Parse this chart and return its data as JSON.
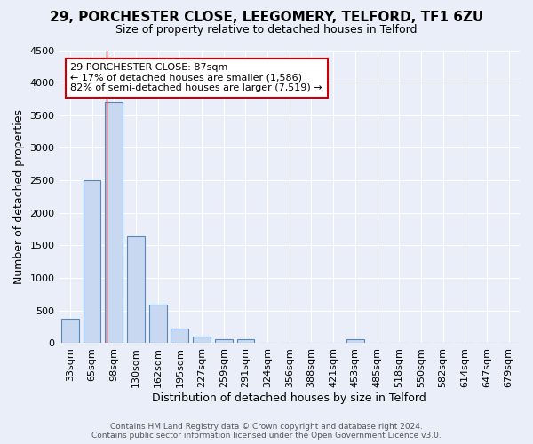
{
  "title": "29, PORCHESTER CLOSE, LEEGOMERY, TELFORD, TF1 6ZU",
  "subtitle": "Size of property relative to detached houses in Telford",
  "xlabel": "Distribution of detached houses by size in Telford",
  "ylabel": "Number of detached properties",
  "categories": [
    "33sqm",
    "65sqm",
    "98sqm",
    "130sqm",
    "162sqm",
    "195sqm",
    "227sqm",
    "259sqm",
    "291sqm",
    "324sqm",
    "356sqm",
    "388sqm",
    "421sqm",
    "453sqm",
    "485sqm",
    "518sqm",
    "550sqm",
    "582sqm",
    "614sqm",
    "647sqm",
    "679sqm"
  ],
  "values": [
    375,
    2500,
    3700,
    1640,
    590,
    230,
    100,
    55,
    55,
    0,
    0,
    0,
    0,
    55,
    0,
    0,
    0,
    0,
    0,
    0,
    0
  ],
  "bar_color": "#c8d8f0",
  "bar_edge_color": "#5588bb",
  "red_line_x": 1.67,
  "annotation_text": "29 PORCHESTER CLOSE: 87sqm\n← 17% of detached houses are smaller (1,586)\n82% of semi-detached houses are larger (7,519) →",
  "annotation_box_color": "#ffffff",
  "annotation_box_edge": "#cc0000",
  "ylim": [
    0,
    4500
  ],
  "yticks": [
    0,
    500,
    1000,
    1500,
    2000,
    2500,
    3000,
    3500,
    4000,
    4500
  ],
  "bg_color": "#eaeef8",
  "plot_bg_color": "#eaeef8",
  "title_fontsize": 11,
  "subtitle_fontsize": 9,
  "xlabel_fontsize": 9,
  "ylabel_fontsize": 9,
  "tick_fontsize": 8,
  "ann_fontsize": 8
}
